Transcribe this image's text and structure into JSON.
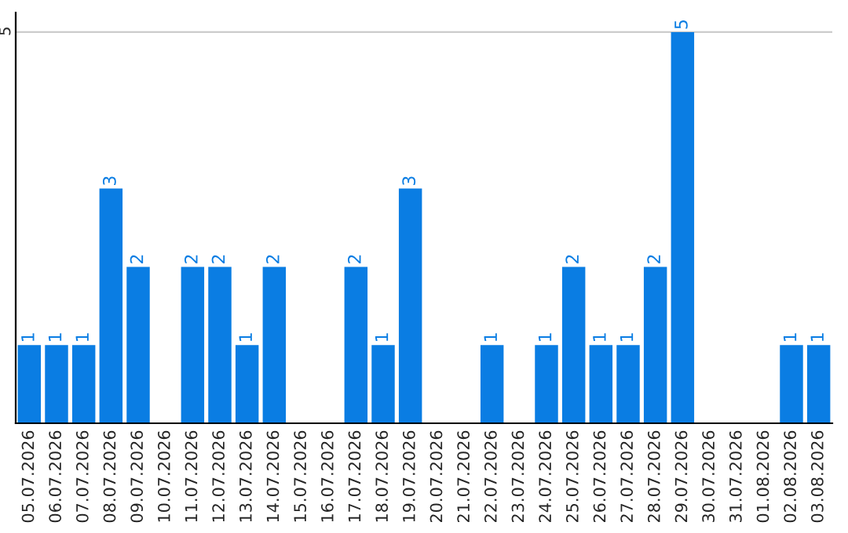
{
  "chart_data": {
    "type": "bar",
    "categories": [
      "05.07.2026",
      "06.07.2026",
      "07.07.2026",
      "08.07.2026",
      "09.07.2026",
      "10.07.2026",
      "11.07.2026",
      "12.07.2026",
      "13.07.2026",
      "14.07.2026",
      "15.07.2026",
      "16.07.2026",
      "17.07.2026",
      "18.07.2026",
      "19.07.2026",
      "20.07.2026",
      "21.07.2026",
      "22.07.2026",
      "23.07.2026",
      "24.07.2026",
      "25.07.2026",
      "26.07.2026",
      "27.07.2026",
      "28.07.2026",
      "29.07.2026",
      "30.07.2026",
      "31.07.2026",
      "01.08.2026",
      "02.08.2026",
      "03.08.2026"
    ],
    "values": [
      1,
      1,
      1,
      3,
      2,
      0,
      2,
      2,
      1,
      2,
      0,
      0,
      2,
      1,
      3,
      0,
      0,
      1,
      0,
      1,
      2,
      1,
      1,
      2,
      5,
      0,
      0,
      0,
      1,
      1
    ],
    "value_labels": [
      "1",
      "1",
      "1",
      "3",
      "2",
      null,
      "2",
      "2",
      "1",
      "2",
      null,
      null,
      "2",
      "1",
      "3",
      null,
      null,
      "1",
      null,
      "1",
      "2",
      "1",
      "1",
      "2",
      "5",
      null,
      null,
      null,
      "1",
      "1"
    ],
    "color": "#0a7de3",
    "ylim": [
      0,
      5.25
    ],
    "yticks": [
      5
    ],
    "grid": "y"
  }
}
